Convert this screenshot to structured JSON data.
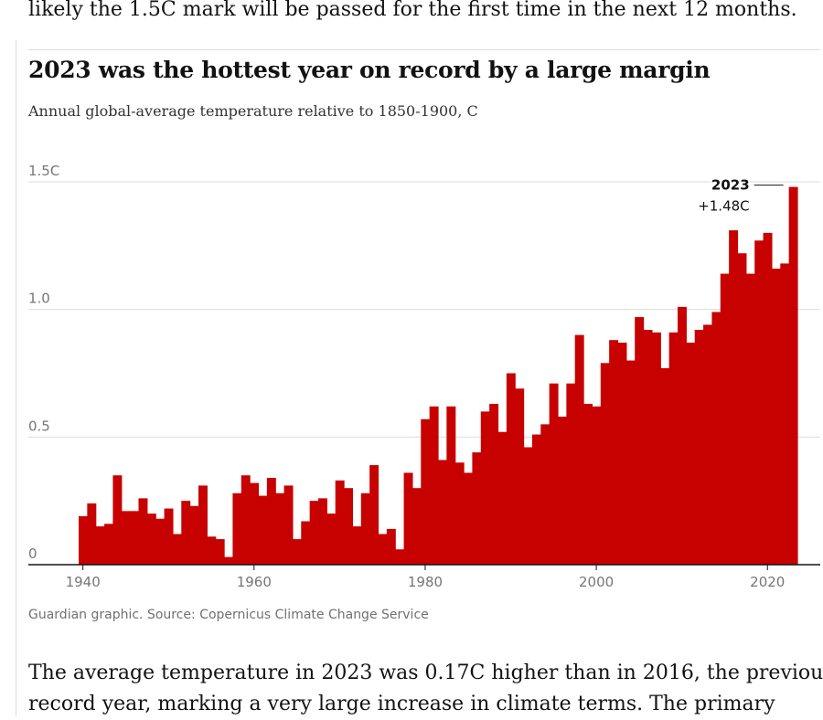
{
  "article": {
    "text_above": "likely the 1.5C mark will be passed for the first time in the next 12 months.",
    "text_below_line1": "The average temperature in 2023 was 0.17C higher than in 2016, the previous",
    "text_below_line2": "record year, marking a very large increase in climate terms. The primary"
  },
  "colors": {
    "bar": "#c70000",
    "grid": "#dcdcdc",
    "axis": "#121212"
  },
  "chart_data": {
    "type": "bar",
    "title": "2023 was the hottest year on record by a large margin",
    "subtitle": "Annual global-average temperature relative to 1850-1900, C",
    "source": "Guardian graphic. Source: Copernicus Climate Change Service",
    "ylim": [
      0,
      1.5
    ],
    "xlim": [
      1936,
      2026
    ],
    "yticks": [
      {
        "value": 0,
        "label": "0"
      },
      {
        "value": 0.5,
        "label": "0.5"
      },
      {
        "value": 1.0,
        "label": "1.0"
      },
      {
        "value": 1.5,
        "label": "1.5C"
      }
    ],
    "xticks": [
      {
        "value": 1940,
        "label": "1940"
      },
      {
        "value": 1960,
        "label": "1960"
      },
      {
        "value": 1980,
        "label": "1980"
      },
      {
        "value": 2000,
        "label": "2000"
      },
      {
        "value": 2020,
        "label": "2020"
      }
    ],
    "grid": true,
    "annotation": {
      "year": 2023,
      "line1": "2023",
      "line2": "+1.48C"
    },
    "years": [
      1940,
      1941,
      1942,
      1943,
      1944,
      1945,
      1946,
      1947,
      1948,
      1949,
      1950,
      1951,
      1952,
      1953,
      1954,
      1955,
      1956,
      1957,
      1958,
      1959,
      1960,
      1961,
      1962,
      1963,
      1964,
      1965,
      1966,
      1967,
      1968,
      1969,
      1970,
      1971,
      1972,
      1973,
      1974,
      1975,
      1976,
      1977,
      1978,
      1979,
      1980,
      1981,
      1982,
      1983,
      1984,
      1985,
      1986,
      1987,
      1988,
      1989,
      1990,
      1991,
      1992,
      1993,
      1994,
      1995,
      1996,
      1997,
      1998,
      1999,
      2000,
      2001,
      2002,
      2003,
      2004,
      2005,
      2006,
      2007,
      2008,
      2009,
      2010,
      2011,
      2012,
      2013,
      2014,
      2015,
      2016,
      2017,
      2018,
      2019,
      2020,
      2021,
      2022,
      2023
    ],
    "values": [
      0.19,
      0.24,
      0.15,
      0.16,
      0.35,
      0.21,
      0.21,
      0.26,
      0.2,
      0.18,
      0.22,
      0.12,
      0.25,
      0.23,
      0.31,
      0.11,
      0.1,
      0.03,
      0.28,
      0.35,
      0.32,
      0.27,
      0.34,
      0.28,
      0.31,
      0.1,
      0.17,
      0.25,
      0.26,
      0.2,
      0.33,
      0.3,
      0.15,
      0.28,
      0.39,
      0.12,
      0.14,
      0.06,
      0.36,
      0.3,
      0.57,
      0.62,
      0.41,
      0.62,
      0.4,
      0.36,
      0.44,
      0.6,
      0.63,
      0.52,
      0.75,
      0.69,
      0.46,
      0.51,
      0.55,
      0.71,
      0.58,
      0.71,
      0.9,
      0.63,
      0.62,
      0.79,
      0.88,
      0.87,
      0.8,
      0.97,
      0.92,
      0.91,
      0.77,
      0.91,
      1.01,
      0.87,
      0.92,
      0.94,
      0.99,
      1.14,
      1.31,
      1.22,
      1.14,
      1.27,
      1.3,
      1.16,
      1.18,
      1.48
    ]
  }
}
